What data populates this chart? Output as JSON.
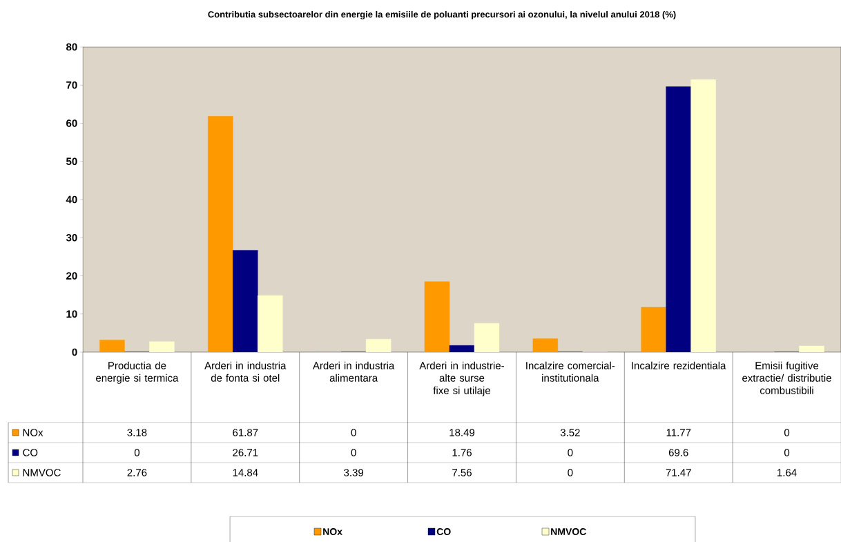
{
  "chart_data": {
    "type": "bar",
    "title": "Contributia subsectoarelor din energie la emisiile de poluanti precursori ai ozonului, la nivelul anului 2018 (%)",
    "categories": [
      "Productia de energie si termica",
      "Arderi in industria de fonta si otel",
      "Arderi in industria alimentara",
      "Arderi in industrie-alte surse fixe si utilaje",
      "Incalzire comercial-institutionala",
      "Incalzire rezidentiala",
      "Emisii fugitive extractie/ distributie combustibili"
    ],
    "series": [
      {
        "name": "NOx",
        "color": "#ff9900",
        "values": [
          3.18,
          61.87,
          0,
          18.49,
          3.52,
          11.77,
          0
        ]
      },
      {
        "name": "CO",
        "color": "#000080",
        "values": [
          0,
          26.71,
          0,
          1.76,
          0,
          69.6,
          0
        ]
      },
      {
        "name": "NMVOC",
        "color": "#ffffcc",
        "values": [
          2.76,
          14.84,
          3.39,
          7.56,
          0,
          71.47,
          1.64
        ]
      }
    ],
    "ylim": [
      0,
      80
    ],
    "yticks": [
      0,
      10,
      20,
      30,
      40,
      50,
      60,
      70,
      80
    ],
    "grid": false,
    "legend": "bottom",
    "data_labels": true
  }
}
